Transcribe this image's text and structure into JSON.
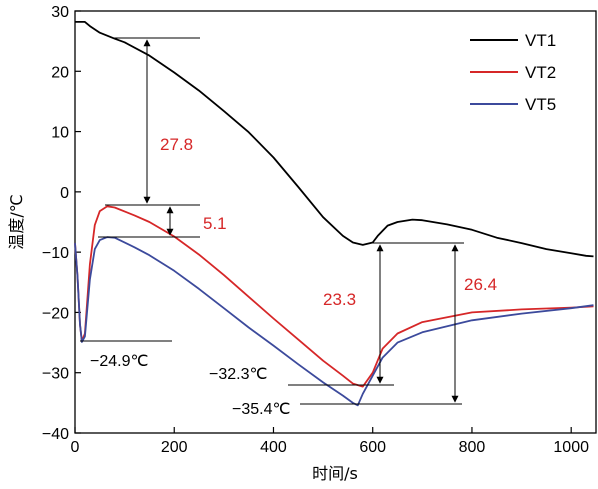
{
  "chart_data": {
    "type": "line",
    "xlabel": "时间/s",
    "ylabel": "温度/℃",
    "xlim": [
      0,
      1050
    ],
    "ylim": [
      -40,
      30
    ],
    "x_ticks": [
      0,
      200,
      400,
      600,
      800,
      1000
    ],
    "y_ticks": [
      -40,
      -30,
      -20,
      -10,
      0,
      10,
      20,
      30
    ],
    "x_tick_labels": [
      "0",
      "200",
      "400",
      "600",
      "800",
      "1000"
    ],
    "y_tick_labels": [
      "−40",
      "−30",
      "−20",
      "−10",
      "0",
      "10",
      "20",
      "30"
    ],
    "grid": false,
    "legend_position": "top-right",
    "series": [
      {
        "name": "VT1",
        "color": "#000000",
        "points": [
          [
            0,
            28.2
          ],
          [
            20,
            28.2
          ],
          [
            30,
            27.5
          ],
          [
            50,
            26.4
          ],
          [
            80,
            25.4
          ],
          [
            100,
            24.8
          ],
          [
            150,
            22.6
          ],
          [
            200,
            19.8
          ],
          [
            250,
            16.8
          ],
          [
            300,
            13.4
          ],
          [
            350,
            9.9
          ],
          [
            400,
            5.7
          ],
          [
            450,
            0.8
          ],
          [
            500,
            -4.2
          ],
          [
            540,
            -7.3
          ],
          [
            560,
            -8.4
          ],
          [
            580,
            -8.8
          ],
          [
            600,
            -8.4
          ],
          [
            610,
            -7.3
          ],
          [
            630,
            -5.6
          ],
          [
            650,
            -5.0
          ],
          [
            680,
            -4.6
          ],
          [
            700,
            -4.7
          ],
          [
            750,
            -5.4
          ],
          [
            800,
            -6.3
          ],
          [
            850,
            -7.6
          ],
          [
            900,
            -8.5
          ],
          [
            950,
            -9.5
          ],
          [
            1000,
            -10.2
          ],
          [
            1030,
            -10.6
          ],
          [
            1045,
            -10.7
          ]
        ]
      },
      {
        "name": "VT2",
        "color": "#d62728",
        "points": [
          [
            0,
            -8.5
          ],
          [
            5,
            -14
          ],
          [
            10,
            -22
          ],
          [
            14,
            -24.8
          ],
          [
            20,
            -23.5
          ],
          [
            30,
            -12
          ],
          [
            40,
            -5.5
          ],
          [
            50,
            -3.2
          ],
          [
            65,
            -2.4
          ],
          [
            80,
            -2.6
          ],
          [
            120,
            -3.9
          ],
          [
            150,
            -5.0
          ],
          [
            200,
            -7.4
          ],
          [
            250,
            -10.4
          ],
          [
            300,
            -13.8
          ],
          [
            350,
            -17.4
          ],
          [
            400,
            -21.0
          ],
          [
            450,
            -24.5
          ],
          [
            500,
            -28.0
          ],
          [
            540,
            -30.5
          ],
          [
            560,
            -31.8
          ],
          [
            580,
            -32.3
          ],
          [
            600,
            -30.0
          ],
          [
            620,
            -26.0
          ],
          [
            650,
            -23.5
          ],
          [
            700,
            -21.6
          ],
          [
            800,
            -20.0
          ],
          [
            900,
            -19.5
          ],
          [
            1000,
            -19.2
          ],
          [
            1045,
            -19.0
          ]
        ]
      },
      {
        "name": "VT5",
        "color": "#3c4a9c",
        "points": [
          [
            0,
            -8.5
          ],
          [
            5,
            -14
          ],
          [
            10,
            -22
          ],
          [
            14,
            -24.9
          ],
          [
            20,
            -24.0
          ],
          [
            30,
            -14.5
          ],
          [
            40,
            -9.5
          ],
          [
            50,
            -8.0
          ],
          [
            65,
            -7.5
          ],
          [
            80,
            -7.6
          ],
          [
            120,
            -9.2
          ],
          [
            150,
            -10.5
          ],
          [
            200,
            -13.1
          ],
          [
            250,
            -16.1
          ],
          [
            300,
            -19.3
          ],
          [
            350,
            -22.5
          ],
          [
            400,
            -25.5
          ],
          [
            450,
            -28.6
          ],
          [
            500,
            -31.6
          ],
          [
            540,
            -33.8
          ],
          [
            560,
            -35.0
          ],
          [
            570,
            -35.4
          ],
          [
            580,
            -33.5
          ],
          [
            600,
            -30.5
          ],
          [
            620,
            -27.5
          ],
          [
            650,
            -25.0
          ],
          [
            700,
            -23.3
          ],
          [
            800,
            -21.3
          ],
          [
            900,
            -20.2
          ],
          [
            1000,
            -19.3
          ],
          [
            1045,
            -18.8
          ]
        ]
      }
    ],
    "annotations": {
      "vt1_vt2_gap": "27.8",
      "vt2_vt5_gap": "5.1",
      "vt1_vt2_late_gap": "23.3",
      "vt1_vt5_late_gap": "26.4",
      "early_min": "−24.9℃",
      "vt2_min": "−32.3℃",
      "vt5_min": "−35.4℃"
    }
  }
}
